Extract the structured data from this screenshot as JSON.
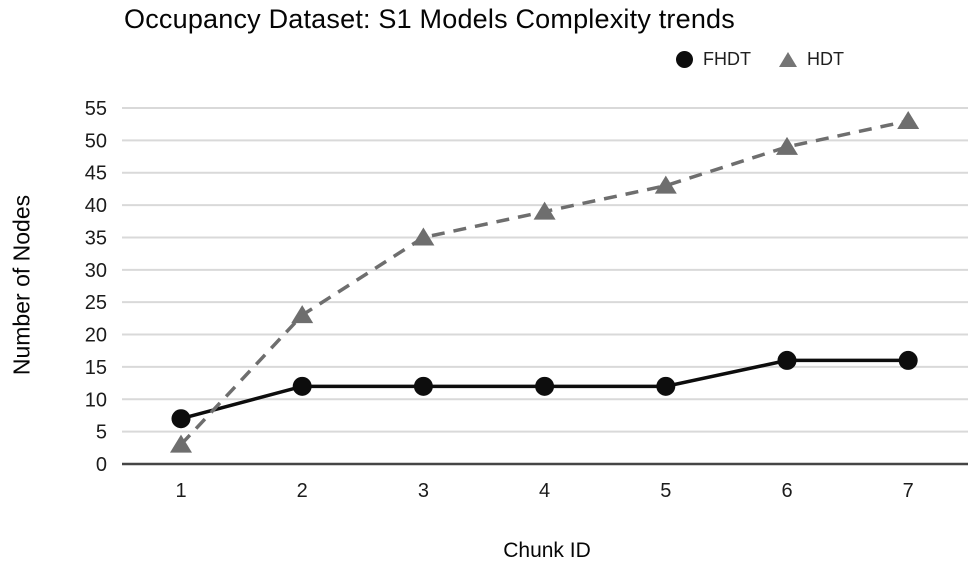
{
  "title": "Occupancy Dataset: S1 Models Complexity trends",
  "chart_data": {
    "type": "line",
    "title": "Occupancy Dataset: S1 Models Complexity trends",
    "xlabel": "Chunk ID",
    "ylabel": "Number of Nodes",
    "x": [
      1,
      2,
      3,
      4,
      5,
      6,
      7
    ],
    "xticks": [
      1,
      2,
      3,
      4,
      5,
      6,
      7
    ],
    "yticks": [
      0,
      5,
      10,
      15,
      20,
      25,
      30,
      35,
      40,
      45,
      50,
      55
    ],
    "ylim": [
      0,
      55
    ],
    "grid": true,
    "legend_position": "top-right",
    "series": [
      {
        "name": "FHDT",
        "values": [
          7,
          12,
          12,
          12,
          12,
          16,
          16
        ],
        "color": "#0d0d0d",
        "line_style": "solid",
        "marker": "circle"
      },
      {
        "name": "HDT",
        "values": [
          3,
          23,
          35,
          39,
          43,
          49,
          53
        ],
        "color": "#6e6e6e",
        "line_style": "dashed",
        "marker": "triangle"
      }
    ],
    "colors": {
      "gridline": "#d9d9d9",
      "axis_line": "#454545",
      "tick_text": "#1c1c1c"
    }
  }
}
